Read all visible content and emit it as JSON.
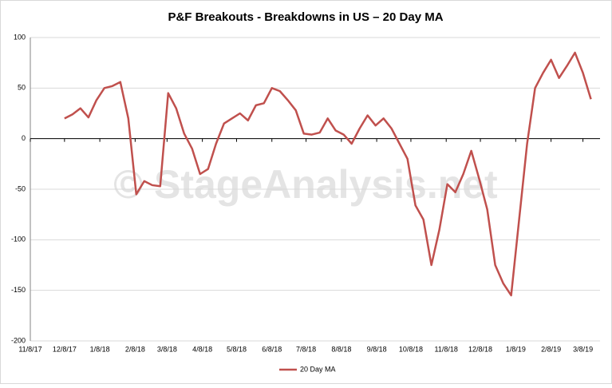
{
  "chart_data": {
    "type": "line",
    "title": "P&F Breakouts - Breakdowns in US – 20 Day MA",
    "watermark": "© StageAnalysis.net",
    "x": [
      "2017-12-08",
      "2017-12-15",
      "2017-12-22",
      "2017-12-29",
      "2018-01-05",
      "2018-01-12",
      "2018-01-19",
      "2018-01-26",
      "2018-02-02",
      "2018-02-09",
      "2018-02-16",
      "2018-02-23",
      "2018-03-02",
      "2018-03-09",
      "2018-03-16",
      "2018-03-23",
      "2018-03-30",
      "2018-04-06",
      "2018-04-13",
      "2018-04-20",
      "2018-04-27",
      "2018-05-04",
      "2018-05-11",
      "2018-05-18",
      "2018-05-25",
      "2018-06-01",
      "2018-06-08",
      "2018-06-15",
      "2018-06-22",
      "2018-06-29",
      "2018-07-06",
      "2018-07-13",
      "2018-07-20",
      "2018-07-27",
      "2018-08-03",
      "2018-08-10",
      "2018-08-17",
      "2018-08-24",
      "2018-08-31",
      "2018-09-07",
      "2018-09-14",
      "2018-09-21",
      "2018-09-28",
      "2018-10-05",
      "2018-10-12",
      "2018-10-19",
      "2018-10-26",
      "2018-11-02",
      "2018-11-09",
      "2018-11-16",
      "2018-11-23",
      "2018-11-30",
      "2018-12-07",
      "2018-12-14",
      "2018-12-21",
      "2018-12-28",
      "2019-01-04",
      "2019-01-11",
      "2019-01-18",
      "2019-01-25",
      "2019-02-01",
      "2019-02-08",
      "2019-02-15",
      "2019-02-22",
      "2019-03-01",
      "2019-03-08",
      "2019-03-15"
    ],
    "series": [
      {
        "name": "20 Day MA",
        "color": "#c0504d",
        "values": [
          20,
          24,
          30,
          21,
          38,
          50,
          52,
          56,
          20,
          -55,
          -42,
          -46,
          -47,
          45,
          30,
          5,
          -10,
          -35,
          -30,
          -5,
          15,
          20,
          25,
          18,
          33,
          35,
          50,
          47,
          38,
          28,
          5,
          4,
          6,
          20,
          8,
          4,
          -5,
          10,
          23,
          13,
          20,
          10,
          -5,
          -20,
          -66,
          -80,
          -125,
          -90,
          -45,
          -53,
          -35,
          -12,
          -40,
          -70,
          -125,
          -143,
          -155,
          -80,
          -5,
          50,
          65,
          78,
          60,
          72,
          85,
          65,
          39
        ]
      }
    ],
    "xlim": [
      "2017-11-08",
      "2019-03-23"
    ],
    "xticks": [
      {
        "value": "2017-11-08",
        "label": "11/8/17"
      },
      {
        "value": "2017-12-08",
        "label": "12/8/17"
      },
      {
        "value": "2018-01-08",
        "label": "1/8/18"
      },
      {
        "value": "2018-02-08",
        "label": "2/8/18"
      },
      {
        "value": "2018-03-08",
        "label": "3/8/18"
      },
      {
        "value": "2018-04-08",
        "label": "4/8/18"
      },
      {
        "value": "2018-05-08",
        "label": "5/8/18"
      },
      {
        "value": "2018-06-08",
        "label": "6/8/18"
      },
      {
        "value": "2018-07-08",
        "label": "7/8/18"
      },
      {
        "value": "2018-08-08",
        "label": "8/8/18"
      },
      {
        "value": "2018-09-08",
        "label": "9/8/18"
      },
      {
        "value": "2018-10-08",
        "label": "10/8/18"
      },
      {
        "value": "2018-11-08",
        "label": "11/8/18"
      },
      {
        "value": "2018-12-08",
        "label": "12/8/18"
      },
      {
        "value": "2019-01-08",
        "label": "1/8/19"
      },
      {
        "value": "2019-02-08",
        "label": "2/8/19"
      },
      {
        "value": "2019-03-08",
        "label": "3/8/19"
      }
    ],
    "ylim": [
      -200,
      100
    ],
    "yticks": [
      -200,
      -150,
      -100,
      -50,
      0,
      50,
      100
    ],
    "grid": true,
    "legend": "bottom"
  }
}
